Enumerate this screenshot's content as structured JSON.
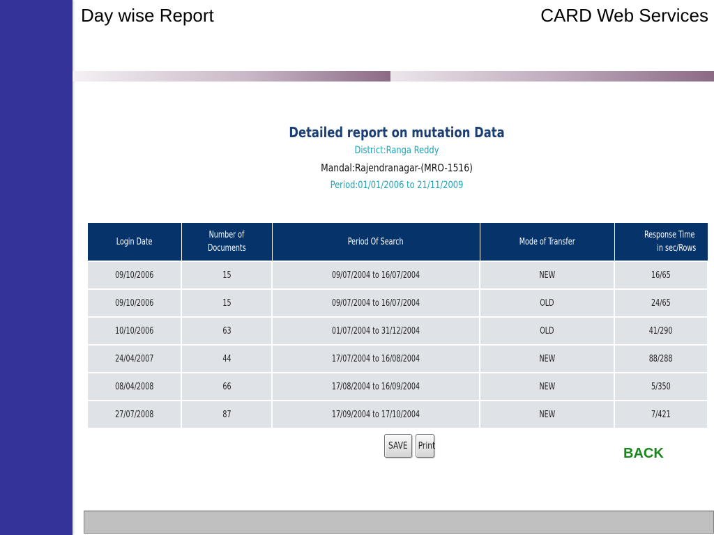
{
  "slide": {
    "title": "Day wise Report",
    "org": "CARD Web Services"
  },
  "report": {
    "title": "Detailed report on mutation Data",
    "district": "District:Ranga Reddy",
    "mandal": "Mandal:Rajendranagar-(MRO-1516)",
    "period": "Period:01/01/2006 to 21/11/2009"
  },
  "table": {
    "headers": {
      "login_date": "Login Date",
      "num_docs_1": "Number of",
      "num_docs_2": "Documents",
      "period": "Period Of Search",
      "mode": "Mode of Transfer",
      "response_1": "Response Time",
      "response_2": "in sec/Rows"
    },
    "rows": [
      {
        "login_date": "09/10/2006",
        "documents": "15",
        "period": "09/07/2004 to 16/07/2004",
        "mode": "NEW",
        "response": "16/65"
      },
      {
        "login_date": "09/10/2006",
        "documents": "15",
        "period": "09/07/2004 to 16/07/2004",
        "mode": "OLD",
        "response": "24/65"
      },
      {
        "login_date": "10/10/2006",
        "documents": "63",
        "period": "01/07/2004 to 31/12/2004",
        "mode": "OLD",
        "response": "41/290"
      },
      {
        "login_date": "24/04/2007",
        "documents": "44",
        "period": "17/07/2004 to 16/08/2004",
        "mode": "NEW",
        "response": "88/288"
      },
      {
        "login_date": "08/04/2008",
        "documents": "66",
        "period": "17/08/2004 to 16/09/2004",
        "mode": "NEW",
        "response": "5/350"
      },
      {
        "login_date": "27/07/2008",
        "documents": "87",
        "period": "17/09/2004 to 17/10/2004",
        "mode": "NEW",
        "response": "7/421"
      }
    ]
  },
  "buttons": {
    "save": "SAVE",
    "print": "Print",
    "back": "BACK"
  },
  "colors": {
    "sidebar": "#333399",
    "table_header": "#05336a",
    "table_row": "#dfe3e8",
    "report_title": "#1b3f73",
    "report_accent": "#1aa3b5",
    "back_link": "#18861b"
  }
}
